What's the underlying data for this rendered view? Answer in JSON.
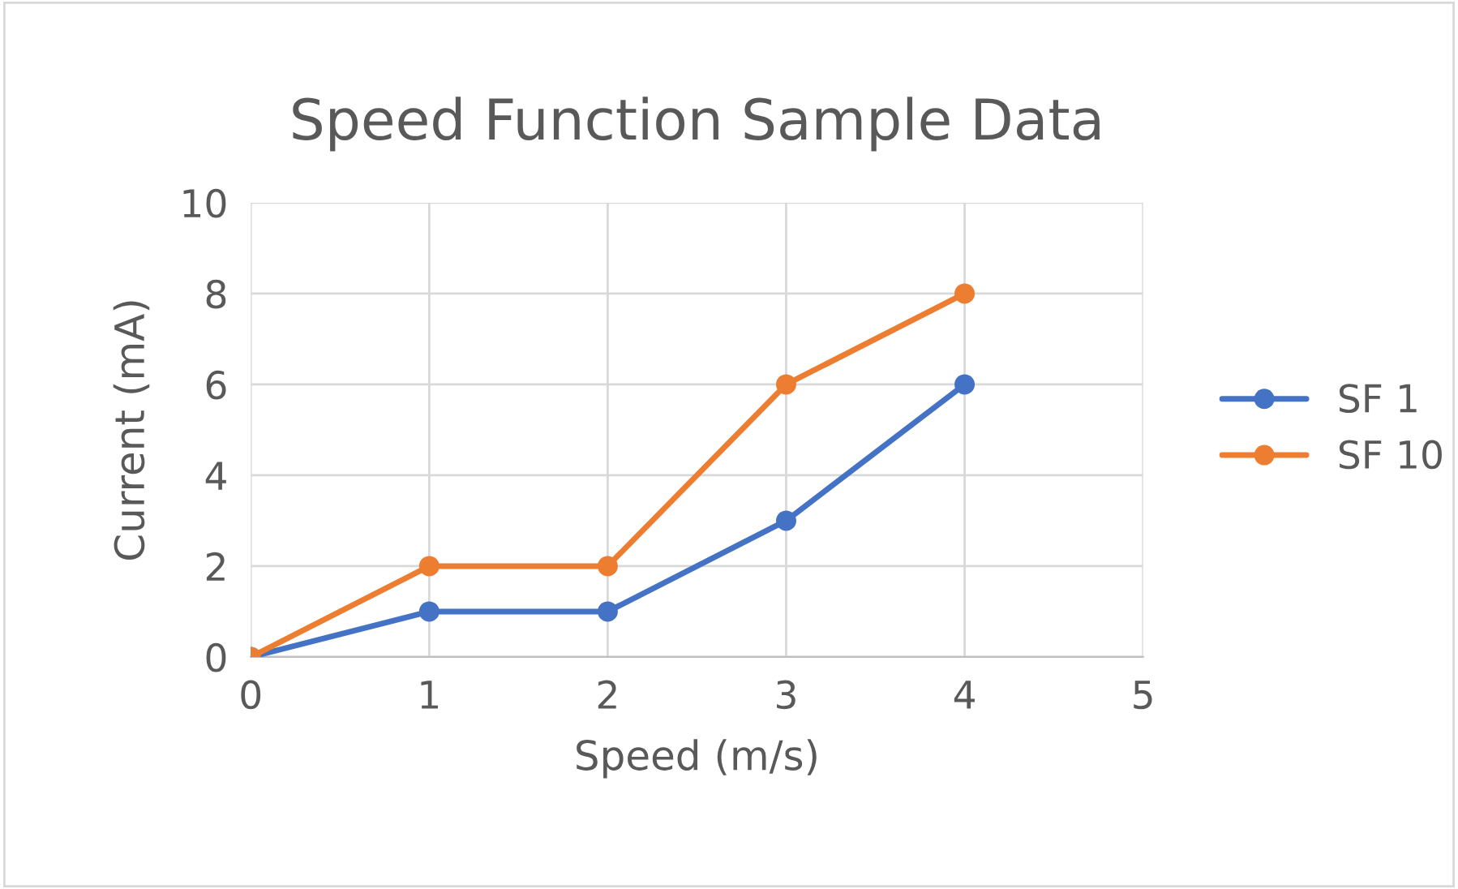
{
  "chart_data": {
    "type": "line",
    "title": "Speed Function Sample Data",
    "xlabel": "Speed (m/s)",
    "ylabel": "Current (mA)",
    "x": [
      0,
      1,
      2,
      3,
      4
    ],
    "series": [
      {
        "name": "SF 1",
        "color": "#4472c4",
        "values": [
          0,
          1,
          1,
          3,
          6
        ]
      },
      {
        "name": "SF 10",
        "color": "#ed7d31",
        "values": [
          0,
          2,
          2,
          6,
          8
        ]
      }
    ],
    "xlim": [
      0,
      5
    ],
    "xticks": [
      0,
      1,
      2,
      3,
      4,
      5
    ],
    "ylim": [
      0,
      10
    ],
    "yticks": [
      0,
      2,
      4,
      6,
      8,
      10
    ],
    "grid": true,
    "legend": "right",
    "marker": "circle",
    "line_style": "solid"
  }
}
